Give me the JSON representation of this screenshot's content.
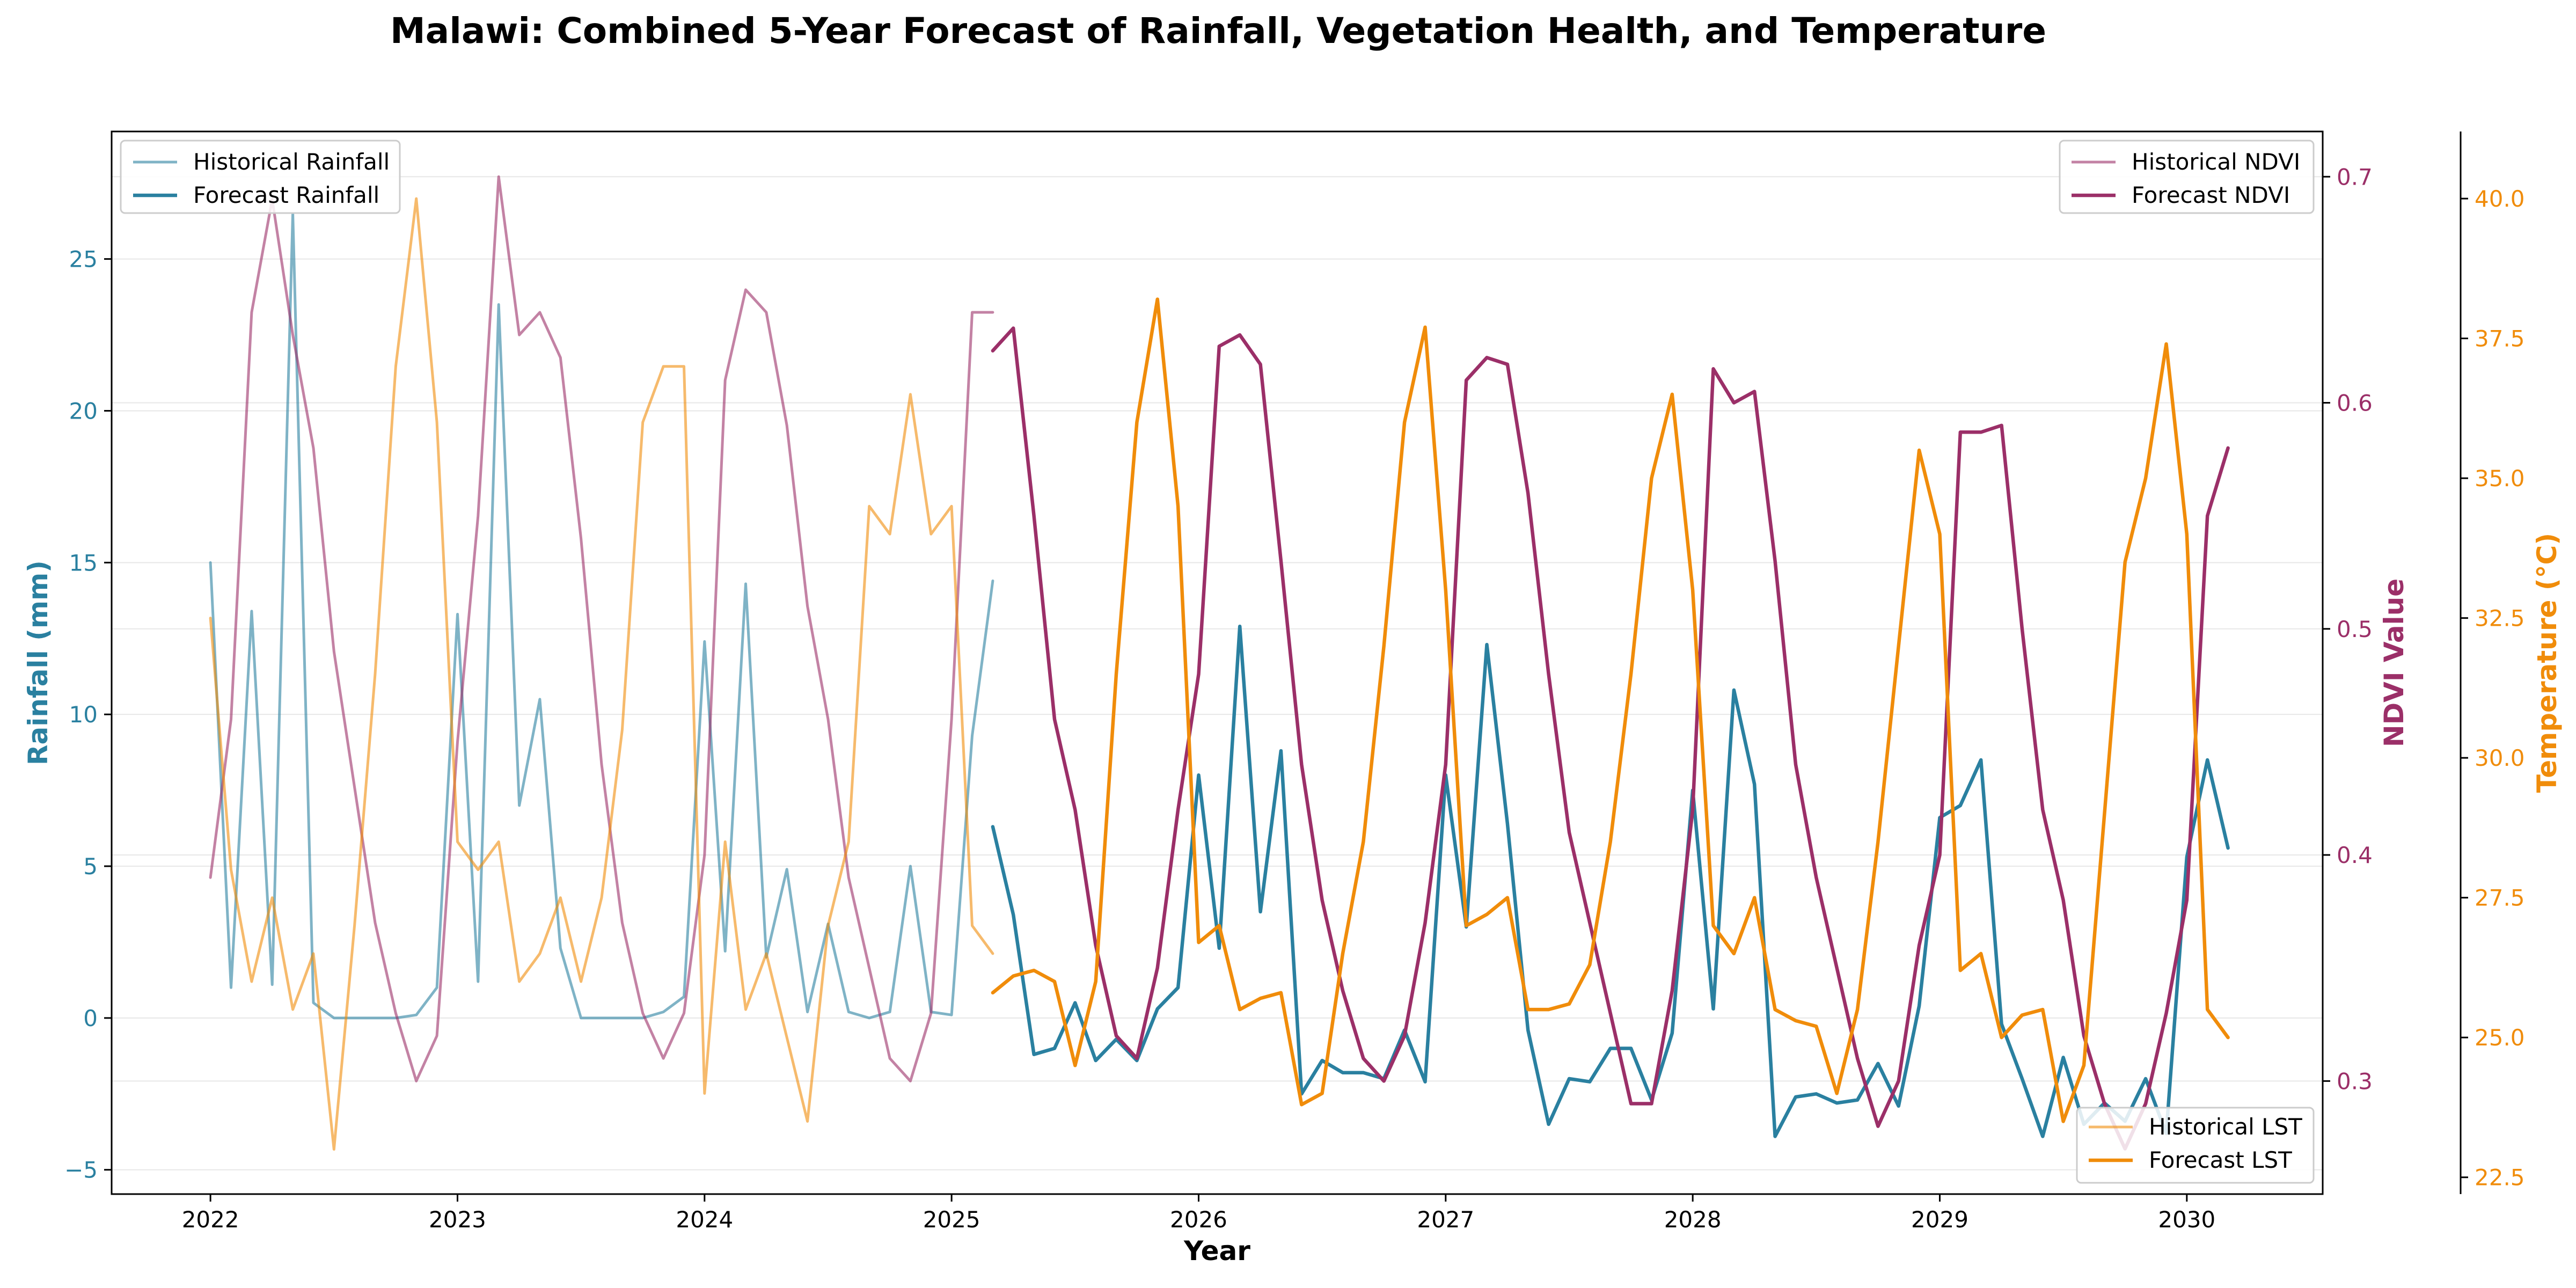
{
  "chart_data": {
    "type": "line",
    "title": "Malawi: Combined 5-Year Forecast of Rainfall, Vegetation Health, and Temperature",
    "xlabel": "Year",
    "xlim": [
      2021.6,
      2030.55
    ],
    "x_ticks": [
      "2022",
      "2023",
      "2024",
      "2025",
      "2026",
      "2027",
      "2028",
      "2029",
      "2030"
    ],
    "grid": true,
    "axes": {
      "rainfall": {
        "label": "Rainfall (mm)",
        "side": "left",
        "color": "#2a80a0",
        "ylim": [
          -5.8,
          29.2
        ],
        "ticks": [
          "−5",
          "0",
          "5",
          "10",
          "15",
          "20",
          "25"
        ]
      },
      "ndvi": {
        "label": "NDVI Value",
        "side": "right",
        "color": "#9b2f68",
        "ylim": [
          0.25,
          0.72
        ],
        "ticks": [
          "0.3",
          "0.4",
          "0.5",
          "0.6",
          "0.7"
        ]
      },
      "temperature": {
        "label": "Temperature (°C)",
        "side": "right-outer",
        "color": "#f08c0a",
        "ylim": [
          22.2,
          41.2
        ],
        "ticks": [
          "22.5",
          "25.0",
          "27.5",
          "30.0",
          "32.5",
          "35.0",
          "37.5",
          "40.0"
        ]
      }
    },
    "legends": {
      "rainfall": {
        "position": "upper-left",
        "entries": [
          "Historical Rainfall",
          "Forecast Rainfall"
        ]
      },
      "ndvi": {
        "position": "upper-right",
        "entries": [
          "Historical NDVI",
          "Forecast NDVI"
        ]
      },
      "temperature": {
        "position": "lower-right",
        "entries": [
          "Historical LST",
          "Forecast LST"
        ]
      }
    },
    "series": [
      {
        "name": "Historical Rainfall",
        "axis": "rainfall",
        "color": "#2a80a0",
        "opacity": 0.6,
        "width": 5,
        "x": [
          2022.0,
          2022.0833,
          2022.1667,
          2022.25,
          2022.3333,
          2022.4167,
          2022.5,
          2022.5833,
          2022.6667,
          2022.75,
          2022.8333,
          2022.9167,
          2023.0,
          2023.0833,
          2023.1667,
          2023.25,
          2023.3333,
          2023.4167,
          2023.5,
          2023.5833,
          2023.6667,
          2023.75,
          2023.8333,
          2023.9167,
          2024.0,
          2024.0833,
          2024.1667,
          2024.25,
          2024.3333,
          2024.4167,
          2024.5,
          2024.5833,
          2024.6667,
          2024.75,
          2024.8333,
          2024.9167,
          2025.0,
          2025.0833,
          2025.1667
        ],
        "values": [
          15.0,
          1.0,
          13.4,
          1.1,
          26.5,
          0.5,
          0.0,
          0.0,
          0.0,
          0.0,
          0.1,
          1.0,
          13.3,
          1.2,
          23.5,
          7.0,
          10.5,
          2.3,
          0.0,
          0.0,
          0.0,
          0.0,
          0.2,
          0.7,
          12.4,
          2.2,
          14.3,
          2.0,
          4.9,
          0.2,
          3.1,
          0.2,
          0.0,
          0.2,
          5.0,
          0.2,
          0.1,
          9.3,
          14.4
        ]
      },
      {
        "name": "Forecast Rainfall",
        "axis": "rainfall",
        "color": "#2a80a0",
        "opacity": 1,
        "width": 6.5,
        "x": [
          2025.1667,
          2025.25,
          2025.3333,
          2025.4167,
          2025.5,
          2025.5833,
          2025.6667,
          2025.75,
          2025.8333,
          2025.9167,
          2026.0,
          2026.0833,
          2026.1667,
          2026.25,
          2026.3333,
          2026.4167,
          2026.5,
          2026.5833,
          2026.6667,
          2026.75,
          2026.8333,
          2026.9167,
          2027.0,
          2027.0833,
          2027.1667,
          2027.25,
          2027.3333,
          2027.4167,
          2027.5,
          2027.5833,
          2027.6667,
          2027.75,
          2027.8333,
          2027.9167,
          2028.0,
          2028.0833,
          2028.1667,
          2028.25,
          2028.3333,
          2028.4167,
          2028.5,
          2028.5833,
          2028.6667,
          2028.75,
          2028.8333,
          2028.9167,
          2029.0,
          2029.0833,
          2029.1667,
          2029.25,
          2029.3333,
          2029.4167,
          2029.5,
          2029.5833,
          2029.6667,
          2029.75,
          2029.8333,
          2029.9167,
          2030.0,
          2030.0833,
          2030.1667
        ],
        "values": [
          6.3,
          3.4,
          -1.2,
          -1.0,
          0.5,
          -1.4,
          -0.7,
          -1.4,
          0.3,
          1.0,
          8.0,
          2.3,
          12.9,
          3.5,
          8.8,
          -2.5,
          -1.4,
          -1.8,
          -1.8,
          -2.0,
          -0.4,
          -2.1,
          8.0,
          3.0,
          12.3,
          6.4,
          -0.4,
          -3.5,
          -2.0,
          -2.1,
          -1.0,
          -1.0,
          -2.7,
          -0.5,
          7.5,
          0.3,
          10.8,
          7.7,
          -3.9,
          -2.6,
          -2.5,
          -2.8,
          -2.7,
          -1.5,
          -2.9,
          0.4,
          6.6,
          7.0,
          8.5,
          -0.2,
          -2.0,
          -3.9,
          -1.3,
          -3.5,
          -2.8,
          -3.4,
          -2.0,
          -3.8,
          5.3,
          8.5,
          5.6
        ]
      },
      {
        "name": "Historical NDVI",
        "axis": "ndvi",
        "color": "#9b2f68",
        "opacity": 0.6,
        "width": 5,
        "x": [
          2022.0,
          2022.0833,
          2022.1667,
          2022.25,
          2022.3333,
          2022.4167,
          2022.5,
          2022.5833,
          2022.6667,
          2022.75,
          2022.8333,
          2022.9167,
          2023.0,
          2023.0833,
          2023.1667,
          2023.25,
          2023.3333,
          2023.4167,
          2023.5,
          2023.5833,
          2023.6667,
          2023.75,
          2023.8333,
          2023.9167,
          2024.0,
          2024.0833,
          2024.1667,
          2024.25,
          2024.3333,
          2024.4167,
          2024.5,
          2024.5833,
          2024.6667,
          2024.75,
          2024.8333,
          2024.9167,
          2025.0,
          2025.0833,
          2025.1667
        ],
        "values": [
          0.39,
          0.46,
          0.64,
          0.69,
          0.63,
          0.58,
          0.49,
          0.43,
          0.37,
          0.33,
          0.3,
          0.32,
          0.45,
          0.55,
          0.7,
          0.63,
          0.64,
          0.62,
          0.54,
          0.44,
          0.37,
          0.33,
          0.31,
          0.33,
          0.4,
          0.61,
          0.65,
          0.64,
          0.59,
          0.51,
          0.46,
          0.39,
          0.35,
          0.31,
          0.3,
          0.33,
          0.46,
          0.64,
          0.64
        ]
      },
      {
        "name": "Forecast NDVI",
        "axis": "ndvi",
        "color": "#9b2f68",
        "opacity": 1,
        "width": 6.5,
        "x": [
          2025.1667,
          2025.25,
          2025.3333,
          2025.4167,
          2025.5,
          2025.5833,
          2025.6667,
          2025.75,
          2025.8333,
          2025.9167,
          2026.0,
          2026.0833,
          2026.1667,
          2026.25,
          2026.3333,
          2026.4167,
          2026.5,
          2026.5833,
          2026.6667,
          2026.75,
          2026.8333,
          2026.9167,
          2027.0,
          2027.0833,
          2027.1667,
          2027.25,
          2027.3333,
          2027.4167,
          2027.5,
          2027.5833,
          2027.6667,
          2027.75,
          2027.8333,
          2027.9167,
          2028.0,
          2028.0833,
          2028.1667,
          2028.25,
          2028.3333,
          2028.4167,
          2028.5,
          2028.5833,
          2028.6667,
          2028.75,
          2028.8333,
          2028.9167,
          2029.0,
          2029.0833,
          2029.1667,
          2029.25,
          2029.3333,
          2029.4167,
          2029.5,
          2029.5833,
          2029.6667,
          2029.75,
          2029.8333,
          2029.9167,
          2030.0,
          2030.0833,
          2030.1667
        ],
        "values": [
          0.623,
          0.633,
          0.55,
          0.46,
          0.42,
          0.36,
          0.32,
          0.31,
          0.35,
          0.42,
          0.48,
          0.625,
          0.63,
          0.617,
          0.53,
          0.44,
          0.38,
          0.34,
          0.31,
          0.3,
          0.32,
          0.37,
          0.44,
          0.61,
          0.62,
          0.617,
          0.56,
          0.48,
          0.41,
          0.37,
          0.33,
          0.29,
          0.29,
          0.34,
          0.42,
          0.615,
          0.6,
          0.605,
          0.53,
          0.44,
          0.39,
          0.35,
          0.31,
          0.28,
          0.3,
          0.36,
          0.4,
          0.587,
          0.587,
          0.59,
          0.5,
          0.42,
          0.38,
          0.32,
          0.29,
          0.27,
          0.29,
          0.33,
          0.38,
          0.55,
          0.58
        ]
      },
      {
        "name": "Historical LST",
        "axis": "temperature",
        "color": "#f08c0a",
        "opacity": 0.6,
        "width": 5,
        "x": [
          2022.0,
          2022.0833,
          2022.1667,
          2022.25,
          2022.3333,
          2022.4167,
          2022.5,
          2022.5833,
          2022.6667,
          2022.75,
          2022.8333,
          2022.9167,
          2023.0,
          2023.0833,
          2023.1667,
          2023.25,
          2023.3333,
          2023.4167,
          2023.5,
          2023.5833,
          2023.6667,
          2023.75,
          2023.8333,
          2023.9167,
          2024.0,
          2024.0833,
          2024.1667,
          2024.25,
          2024.3333,
          2024.4167,
          2024.5,
          2024.5833,
          2024.6667,
          2024.75,
          2024.8333,
          2024.9167,
          2025.0,
          2025.0833,
          2025.1667
        ],
        "values": [
          32.5,
          28.0,
          26.0,
          27.5,
          25.5,
          26.5,
          23.0,
          27.0,
          31.5,
          37.0,
          40.0,
          36.0,
          28.5,
          28.0,
          28.5,
          26.0,
          26.5,
          27.5,
          26.0,
          27.5,
          30.5,
          36.0,
          37.0,
          37.0,
          24.0,
          28.5,
          25.5,
          26.5,
          25.0,
          23.5,
          27.0,
          28.5,
          34.5,
          34.0,
          36.5,
          34.0,
          34.5,
          27.0,
          26.5
        ]
      },
      {
        "name": "Forecast LST",
        "axis": "temperature",
        "color": "#f08c0a",
        "opacity": 1,
        "width": 6.5,
        "x": [
          2025.1667,
          2025.25,
          2025.3333,
          2025.4167,
          2025.5,
          2025.5833,
          2025.6667,
          2025.75,
          2025.8333,
          2025.9167,
          2026.0,
          2026.0833,
          2026.1667,
          2026.25,
          2026.3333,
          2026.4167,
          2026.5,
          2026.5833,
          2026.6667,
          2026.75,
          2026.8333,
          2026.9167,
          2027.0,
          2027.0833,
          2027.1667,
          2027.25,
          2027.3333,
          2027.4167,
          2027.5,
          2027.5833,
          2027.6667,
          2027.75,
          2027.8333,
          2027.9167,
          2028.0,
          2028.0833,
          2028.1667,
          2028.25,
          2028.3333,
          2028.4167,
          2028.5,
          2028.5833,
          2028.6667,
          2028.75,
          2028.8333,
          2028.9167,
          2029.0,
          2029.0833,
          2029.1667,
          2029.25,
          2029.3333,
          2029.4167,
          2029.5,
          2029.5833,
          2029.6667,
          2029.75,
          2029.8333,
          2029.9167,
          2030.0,
          2030.0833,
          2030.1667
        ],
        "values": [
          25.8,
          26.1,
          26.2,
          26.0,
          24.5,
          26.0,
          31.5,
          36.0,
          38.2,
          34.5,
          26.7,
          27.0,
          25.5,
          25.7,
          25.8,
          23.8,
          24.0,
          26.5,
          28.5,
          32.0,
          36.0,
          37.7,
          33.0,
          27.0,
          27.2,
          27.5,
          25.5,
          25.5,
          25.6,
          26.3,
          28.5,
          31.5,
          35.0,
          36.5,
          33.0,
          27.0,
          26.5,
          27.5,
          25.5,
          25.3,
          25.2,
          24.0,
          25.5,
          28.5,
          32.0,
          35.5,
          34.0,
          26.2,
          26.5,
          25.0,
          25.4,
          25.5,
          23.5,
          24.5,
          29.0,
          33.5,
          35.0,
          37.4,
          34.0,
          25.5,
          25.0
        ]
      }
    ]
  }
}
